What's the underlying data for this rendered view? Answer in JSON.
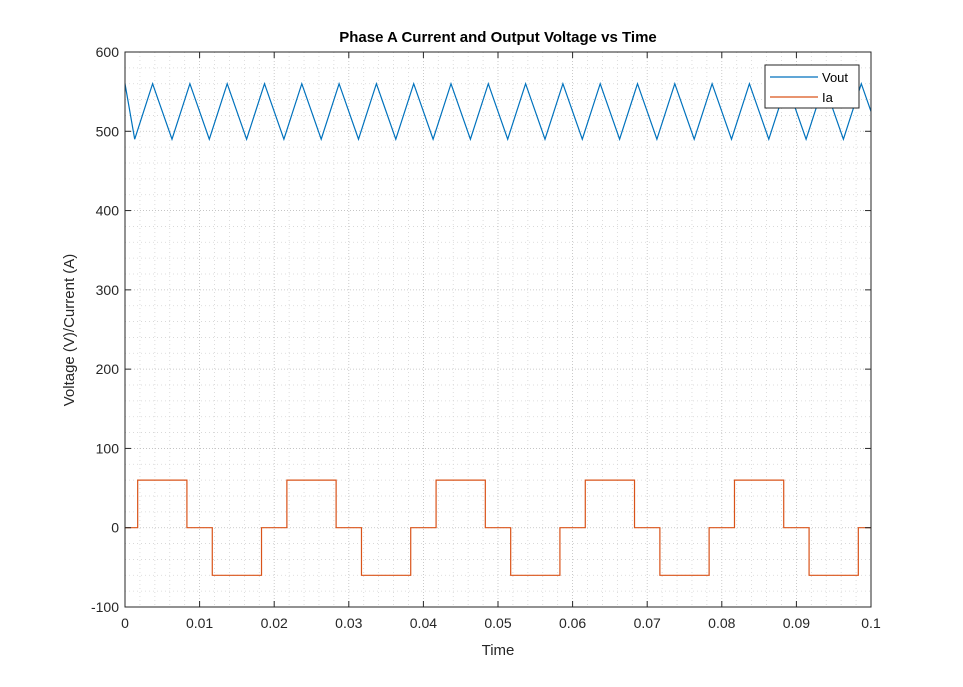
{
  "chart_data": {
    "type": "line",
    "title": "Phase A Current and Output Voltage vs Time",
    "xlabel": "Time",
    "ylabel": "Voltage (V)/Current (A)",
    "xlim": [
      0,
      0.1
    ],
    "ylim": [
      -100,
      600
    ],
    "xticks": [
      0,
      0.01,
      0.02,
      0.03,
      0.04,
      0.05,
      0.06,
      0.07,
      0.08,
      0.09,
      0.1
    ],
    "yticks": [
      -100,
      0,
      100,
      200,
      300,
      400,
      500,
      600
    ],
    "xtick_labels": [
      "0",
      "0.01",
      "0.02",
      "0.03",
      "0.04",
      "0.05",
      "0.06",
      "0.07",
      "0.08",
      "0.09",
      "0.1"
    ],
    "ytick_labels": [
      "-100",
      "0",
      "100",
      "200",
      "300",
      "400",
      "500",
      "600"
    ],
    "grid": "major and minor, dotted",
    "legend_position": "top-right",
    "series": [
      {
        "name": "Vout",
        "color": "#0072BD",
        "x": [
          0,
          0.0013,
          0.0037,
          0.0063,
          0.0087,
          0.0113,
          0.0137,
          0.0163,
          0.0187,
          0.0213,
          0.0237,
          0.0263,
          0.0287,
          0.0313,
          0.0337,
          0.0363,
          0.0387,
          0.0413,
          0.0437,
          0.0463,
          0.0487,
          0.0513,
          0.0537,
          0.0563,
          0.0587,
          0.0613,
          0.0637,
          0.0663,
          0.0687,
          0.0713,
          0.0737,
          0.0763,
          0.0787,
          0.0813,
          0.0837,
          0.0863,
          0.0887,
          0.0913,
          0.0937,
          0.0963,
          0.0987,
          0.1
        ],
        "y": [
          560,
          490,
          560,
          490,
          560,
          490,
          560,
          490,
          560,
          490,
          560,
          490,
          560,
          490,
          560,
          490,
          560,
          490,
          560,
          490,
          560,
          490,
          560,
          490,
          560,
          490,
          560,
          490,
          560,
          490,
          560,
          490,
          560,
          490,
          560,
          490,
          560,
          490,
          560,
          490,
          560,
          525
        ]
      },
      {
        "name": "Ia",
        "color": "#D95319",
        "x": [
          0,
          0.0017,
          0.0017,
          0.0083,
          0.0083,
          0.0117,
          0.0117,
          0.0183,
          0.0183,
          0.0217,
          0.0217,
          0.0283,
          0.0283,
          0.0317,
          0.0317,
          0.0383,
          0.0383,
          0.0417,
          0.0417,
          0.0483,
          0.0483,
          0.0517,
          0.0517,
          0.0583,
          0.0583,
          0.0617,
          0.0617,
          0.0683,
          0.0683,
          0.0717,
          0.0717,
          0.0783,
          0.0783,
          0.0817,
          0.0817,
          0.0883,
          0.0883,
          0.0917,
          0.0917,
          0.0983,
          0.0983,
          0.1
        ],
        "y": [
          0,
          0,
          60,
          60,
          0,
          0,
          -60,
          -60,
          0,
          0,
          60,
          60,
          0,
          0,
          -60,
          -60,
          0,
          0,
          60,
          60,
          0,
          0,
          -60,
          -60,
          0,
          0,
          60,
          60,
          0,
          0,
          -60,
          -60,
          0,
          0,
          60,
          60,
          0,
          0,
          -60,
          -60,
          0,
          0
        ]
      }
    ]
  }
}
